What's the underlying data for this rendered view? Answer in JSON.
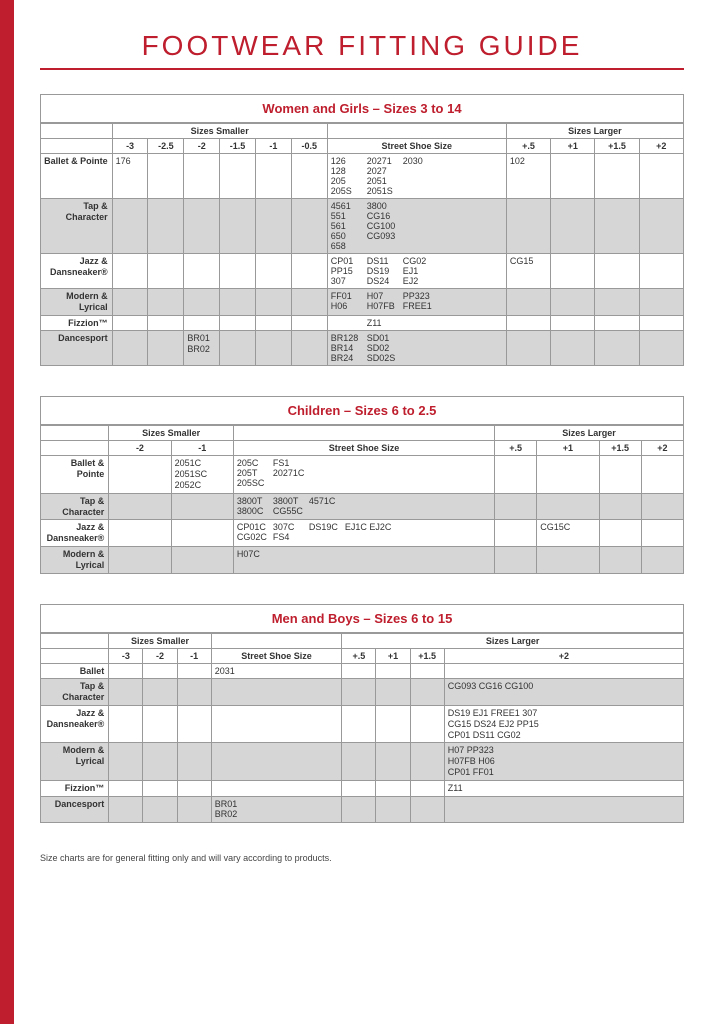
{
  "colors": {
    "accent": "#be1e2d",
    "alt_row": "#d6d6d6",
    "border": "#999999",
    "text": "#333333",
    "bg": "#ffffff"
  },
  "typography": {
    "title_fontsize": 28,
    "title_letterspacing": 3,
    "table_fontsize": 9
  },
  "page_title": "FOOTWEAR FITTING GUIDE",
  "footnote": "Size charts are for general fitting only and will vary according to products.",
  "women": {
    "title": "Women and Girls – Sizes 3 to 14",
    "group_smaller": "Sizes Smaller",
    "group_larger": "Sizes Larger",
    "smaller_headers": [
      "-3",
      "-2.5",
      "-2",
      "-1.5",
      "-1",
      "-0.5"
    ],
    "street_header": "Street Shoe Size",
    "larger_headers": [
      "+.5",
      "+1",
      "+1.5",
      "+2"
    ],
    "rows": [
      {
        "label": "Ballet & Pointe",
        "s": [
          "176",
          "",
          "",
          "",
          "",
          ""
        ],
        "street_cols": [
          "126\n128\n205\n205S",
          "20271\n2027\n2051\n2051S",
          "2030"
        ],
        "l": [
          "102",
          "",
          "",
          ""
        ]
      },
      {
        "label": "Tap & Character",
        "s": [
          "",
          "",
          "",
          "",
          "",
          ""
        ],
        "street_cols": [
          "4561\n551\n561\n650\n658",
          "3800\nCG16\nCG100\nCG093",
          ""
        ],
        "l": [
          "",
          "",
          "",
          ""
        ]
      },
      {
        "label": "Jazz & Dansneaker®",
        "s": [
          "",
          "",
          "",
          "",
          "",
          ""
        ],
        "street_cols": [
          "CP01\nPP15\n307",
          "DS11\nDS19\nDS24",
          "CG02\nEJ1\nEJ2"
        ],
        "l": [
          "CG15",
          "",
          "",
          ""
        ]
      },
      {
        "label": "Modern & Lyrical",
        "s": [
          "",
          "",
          "",
          "",
          "",
          ""
        ],
        "street_cols": [
          "FF01\nH06",
          "H07\nH07FB",
          "PP323\nFREE1"
        ],
        "l": [
          "",
          "",
          "",
          ""
        ]
      },
      {
        "label": "Fizzion™",
        "s": [
          "",
          "",
          "",
          "",
          "",
          ""
        ],
        "street_cols": [
          "",
          "Z11",
          ""
        ],
        "l": [
          "",
          "",
          "",
          ""
        ]
      },
      {
        "label": "Dancesport",
        "s": [
          "",
          "",
          "BR01\nBR02",
          "",
          "",
          ""
        ],
        "street_cols": [
          "BR128\nBR14\nBR24",
          "SD01\nSD02\nSD02S",
          ""
        ],
        "l": [
          "",
          "",
          "",
          ""
        ]
      }
    ]
  },
  "children": {
    "title": "Children – Sizes 6 to 2.5",
    "group_smaller": "Sizes Smaller",
    "group_larger": "Sizes Larger",
    "smaller_headers": [
      "-2",
      "-1"
    ],
    "street_header": "Street Shoe Size",
    "larger_headers": [
      "+.5",
      "+1",
      "+1.5",
      "+2"
    ],
    "rows": [
      {
        "label": "Ballet & Pointe",
        "s": [
          "",
          "2051C\n2051SC\n2052C"
        ],
        "street_cols": [
          "205C\n205T\n205SC",
          "FS1\n20271C",
          "",
          ""
        ],
        "l": [
          "",
          "",
          "",
          ""
        ]
      },
      {
        "label": "Tap & Character",
        "s": [
          "",
          ""
        ],
        "street_cols": [
          "3800T\n3800C",
          "3800T\nCG55C",
          "4571C",
          ""
        ],
        "l": [
          "",
          "",
          "",
          ""
        ]
      },
      {
        "label": "Jazz & Dansneaker®",
        "s": [
          "",
          ""
        ],
        "street_cols": [
          "CP01C\nCG02C",
          "307C\nFS4",
          "DS19C",
          "EJ1C EJ2C"
        ],
        "l": [
          "",
          "CG15C",
          "",
          ""
        ]
      },
      {
        "label": "Modern & Lyrical",
        "s": [
          "",
          ""
        ],
        "street_cols": [
          "H07C",
          "",
          "",
          ""
        ],
        "l": [
          "",
          "",
          "",
          ""
        ]
      }
    ]
  },
  "men": {
    "title": "Men and Boys – Sizes 6 to 15",
    "group_smaller": "Sizes Smaller",
    "group_larger": "Sizes Larger",
    "smaller_headers": [
      "-3",
      "-2",
      "-1"
    ],
    "street_header": "Street Shoe Size",
    "larger_headers": [
      "+.5",
      "+1",
      "+1.5",
      "+2"
    ],
    "rows": [
      {
        "label": "Ballet",
        "s": [
          "",
          "",
          ""
        ],
        "street": "2031",
        "l": [
          "",
          "",
          "",
          ""
        ]
      },
      {
        "label": "Tap & Character",
        "s": [
          "",
          "",
          ""
        ],
        "street": "",
        "l": [
          "",
          "",
          "",
          "CG093   CG16   CG100"
        ]
      },
      {
        "label": "Jazz & Dansneaker®",
        "s": [
          "",
          "",
          ""
        ],
        "street": "",
        "l": [
          "",
          "",
          "",
          "DS19   EJ1   FREE1   307\nCG15   DS24   EJ2    PP15\nCP01   DS11   CG02"
        ]
      },
      {
        "label": "Modern & Lyrical",
        "s": [
          "",
          "",
          ""
        ],
        "street": "",
        "l": [
          "",
          "",
          "",
          "H07    PP323\nH07FB  H06\nCP01   FF01"
        ]
      },
      {
        "label": "Fizzion™",
        "s": [
          "",
          "",
          ""
        ],
        "street": "",
        "l": [
          "",
          "",
          "",
          "Z11"
        ]
      },
      {
        "label": "Dancesport",
        "s": [
          "",
          "",
          ""
        ],
        "street": "BR01\nBR02",
        "l": [
          "",
          "",
          "",
          ""
        ]
      }
    ]
  }
}
